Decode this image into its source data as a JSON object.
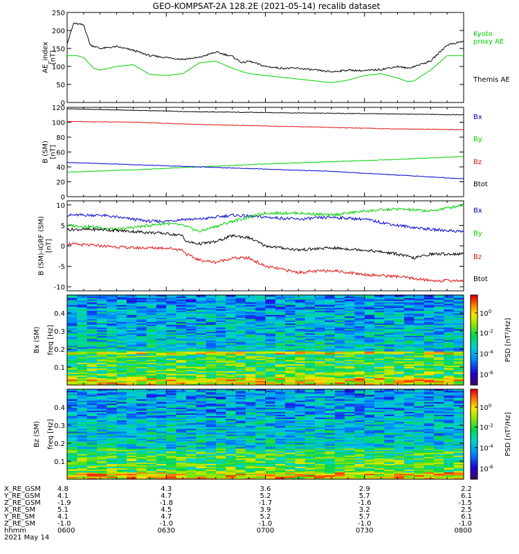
{
  "title": "GEO-KOMPSAT-2A 128.2E (2021-05-14) recalib dataset",
  "colors": {
    "black": "#000000",
    "red": "#e01010",
    "green": "#00d000",
    "blue": "#0000d0"
  },
  "chart_data": [
    {
      "type": "line",
      "panel": "ae",
      "ylabel": [
        "AE_index",
        "[nT]"
      ],
      "ylim": [
        0,
        250
      ],
      "yticks": [
        0,
        50,
        100,
        150,
        200,
        250
      ],
      "xlim": [
        0,
        120
      ],
      "legend": [
        {
          "label": "Kyoto proxy AE",
          "lines": [
            "Kyoto",
            "proxy AE"
          ],
          "color": "#00d000"
        },
        {
          "label": "Themis AE",
          "lines": [
            "Themis AE"
          ],
          "color": "#000000"
        }
      ],
      "series": [
        {
          "name": "Themis AE",
          "color": "#000000",
          "x": [
            0,
            2,
            5,
            7,
            10,
            15,
            20,
            25,
            30,
            35,
            40,
            45,
            50,
            53,
            55,
            60,
            65,
            70,
            75,
            80,
            85,
            90,
            95,
            100,
            103,
            105,
            110,
            115,
            120
          ],
          "y": [
            165,
            220,
            215,
            160,
            150,
            155,
            145,
            130,
            125,
            120,
            125,
            140,
            128,
            110,
            115,
            100,
            95,
            95,
            90,
            85,
            90,
            88,
            92,
            100,
            95,
            100,
            115,
            160,
            170
          ]
        },
        {
          "name": "Kyoto proxy AE",
          "color": "#00d000",
          "x": [
            0,
            3,
            5,
            8,
            10,
            15,
            20,
            25,
            30,
            35,
            40,
            45,
            50,
            55,
            60,
            65,
            70,
            75,
            80,
            85,
            90,
            95,
            100,
            103,
            105,
            110,
            115,
            120
          ],
          "y": [
            130,
            130,
            125,
            95,
            90,
            100,
            105,
            78,
            75,
            80,
            110,
            115,
            95,
            80,
            75,
            70,
            65,
            60,
            55,
            62,
            75,
            80,
            68,
            58,
            60,
            90,
            130,
            130
          ]
        }
      ]
    },
    {
      "type": "line",
      "panel": "b",
      "ylabel": [
        "B (SM)",
        "[nT]"
      ],
      "ylim": [
        0,
        120
      ],
      "yticks": [
        0,
        20,
        40,
        60,
        80,
        100,
        120
      ],
      "xlim": [
        0,
        120
      ],
      "legend": [
        {
          "label": "Bx",
          "color": "#0000d0"
        },
        {
          "label": "By",
          "color": "#00d000"
        },
        {
          "label": "Bz",
          "color": "#e01010"
        },
        {
          "label": "Btot",
          "color": "#000000"
        }
      ],
      "series": [
        {
          "name": "Btot",
          "color": "#000000",
          "x": [
            0,
            20,
            40,
            60,
            80,
            100,
            120
          ],
          "y": [
            118,
            116,
            114,
            113,
            112,
            111,
            110
          ]
        },
        {
          "name": "Bz",
          "color": "#e01010",
          "x": [
            0,
            20,
            40,
            60,
            80,
            100,
            120
          ],
          "y": [
            101,
            100,
            97,
            95,
            93,
            91,
            90
          ]
        },
        {
          "name": "By",
          "color": "#00d000",
          "x": [
            0,
            20,
            40,
            60,
            80,
            100,
            120
          ],
          "y": [
            33,
            36,
            40,
            44,
            47,
            50,
            54
          ]
        },
        {
          "name": "Bx",
          "color": "#0000d0",
          "x": [
            0,
            20,
            40,
            60,
            80,
            100,
            120
          ],
          "y": [
            46,
            43,
            40,
            37,
            34,
            29,
            24
          ]
        }
      ]
    },
    {
      "type": "line",
      "panel": "db",
      "ylabel": [
        "B (SM)-IGRF (SM)",
        "[nT]"
      ],
      "ylim": [
        -11,
        11
      ],
      "yticks": [
        -10,
        -5,
        0,
        5,
        10
      ],
      "xlim": [
        0,
        120
      ],
      "legend": [
        {
          "label": "Bx",
          "color": "#0000d0"
        },
        {
          "label": "By",
          "color": "#00d000"
        },
        {
          "label": "Bz",
          "color": "#e01010"
        },
        {
          "label": "Btot",
          "color": "#000000"
        }
      ],
      "series": [
        {
          "name": "Bx",
          "color": "#0000d0",
          "x": [
            0,
            10,
            20,
            25,
            30,
            35,
            40,
            50,
            60,
            70,
            80,
            90,
            100,
            110,
            120
          ],
          "y": [
            7.5,
            7.5,
            6.5,
            6,
            6,
            6.5,
            6.5,
            7.5,
            7,
            6.5,
            7,
            6.5,
            5,
            4,
            3.5
          ]
        },
        {
          "name": "By",
          "color": "#00d000",
          "x": [
            0,
            10,
            15,
            20,
            25,
            30,
            35,
            40,
            50,
            60,
            70,
            80,
            90,
            100,
            110,
            120
          ],
          "y": [
            5,
            4.5,
            4,
            4.5,
            5,
            5.5,
            5,
            3.5,
            6,
            8,
            8,
            7.5,
            8.5,
            9,
            8.5,
            10
          ]
        },
        {
          "name": "Btot",
          "color": "#000000",
          "x": [
            0,
            10,
            20,
            30,
            35,
            36,
            40,
            45,
            50,
            55,
            60,
            70,
            80,
            90,
            100,
            105,
            110,
            120
          ],
          "y": [
            4,
            4,
            3.5,
            3,
            2.5,
            1,
            0.5,
            1,
            2.5,
            2,
            0,
            -1,
            -0.5,
            -1,
            -2,
            -3,
            -2,
            -2
          ]
        },
        {
          "name": "Bz",
          "color": "#e01010",
          "x": [
            0,
            10,
            20,
            30,
            35,
            36,
            40,
            45,
            50,
            55,
            60,
            70,
            80,
            90,
            100,
            110,
            120
          ],
          "y": [
            0.5,
            0,
            -0.5,
            -0.5,
            -1,
            -2,
            -3.5,
            -4,
            -3,
            -3,
            -5,
            -6.5,
            -6,
            -7,
            -7.5,
            -8.5,
            -8.5
          ]
        }
      ]
    },
    {
      "type": "heatmap",
      "panel": "spec_bx",
      "ylabel": [
        "Bx (SM)",
        "freq [Hz]"
      ],
      "ylim": [
        0,
        0.5
      ],
      "yticks": [
        0.1,
        0.2,
        0.3,
        0.4
      ],
      "colorbar": {
        "label": "PSD [nT²/Hz]",
        "ticks": [
          "10^0",
          "10^-2",
          "10^-4",
          "10^-6"
        ]
      }
    },
    {
      "type": "heatmap",
      "panel": "spec_bz",
      "ylabel": [
        "Bz (SM)",
        "freq [Hz]"
      ],
      "ylim": [
        0,
        0.5
      ],
      "yticks": [
        0.1,
        0.2,
        0.3,
        0.4
      ],
      "colorbar": {
        "label": "PSD [nT²/Hz]",
        "ticks": [
          "10^0",
          "10^-2",
          "10^-4",
          "10^-6"
        ]
      }
    }
  ],
  "ephemeris": {
    "row_labels": [
      "X_RE_GSM",
      "Y_RE_GSM",
      "Z_RE_GSM",
      "X_RE_SM",
      "Y_RE_SM",
      "Z_RE_SM",
      "hhmm"
    ],
    "columns": [
      {
        "x": 0,
        "values": [
          "4.8",
          "4.1",
          "-1.9",
          "5.1",
          "4.1",
          "-1.0",
          "0600"
        ]
      },
      {
        "x": 30,
        "values": [
          "4.3",
          "4.7",
          "-1.8",
          "4.5",
          "4.7",
          "-1.0",
          "0630"
        ]
      },
      {
        "x": 60,
        "values": [
          "3.6",
          "5.2",
          "-1.7",
          "3.9",
          "5.2",
          "-1.0",
          "0700"
        ]
      },
      {
        "x": 90,
        "values": [
          "2.9",
          "5.7",
          "-1.6",
          "3.2",
          "5.7",
          "-1.0",
          "0730"
        ]
      },
      {
        "x": 120,
        "values": [
          "2.2",
          "6.1",
          "-1.5",
          "2.5",
          "6.1",
          "-1.0",
          "0800"
        ]
      }
    ],
    "date": "2021 May 14"
  }
}
